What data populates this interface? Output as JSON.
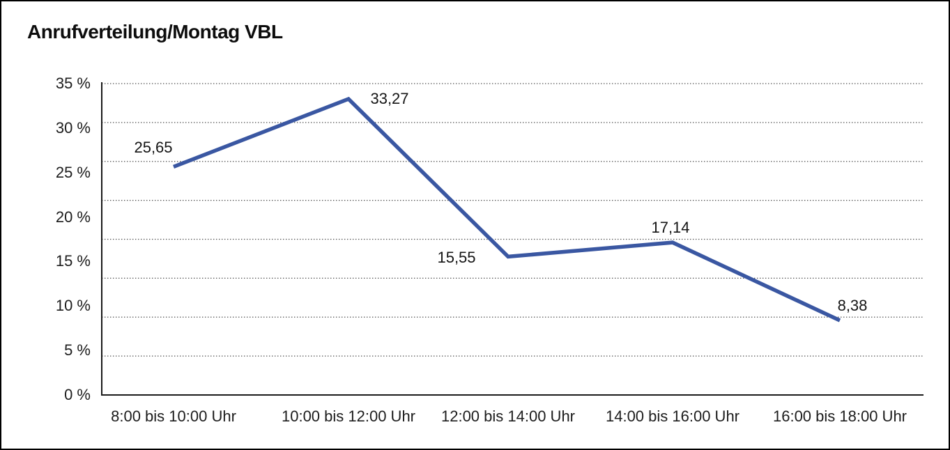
{
  "window": {
    "background_color": "#ffffff",
    "border_color": "#000000"
  },
  "chart_data": {
    "type": "line",
    "title": "Anrufverteilung/Montag VBL",
    "categories": [
      "8:00 bis 10:00 Uhr",
      "10:00 bis 12:00 Uhr",
      "12:00 bis 14:00 Uhr",
      "14:00 bis 16:00 Uhr",
      "16:00 bis 18:00 Uhr"
    ],
    "values": [
      25.65,
      33.27,
      15.55,
      17.14,
      8.38
    ],
    "value_labels": [
      "25,65",
      "33,27",
      "15,55",
      "17,14",
      "8,38"
    ],
    "y_tick_labels": [
      "35 %",
      "30 %",
      "25 %",
      "20 %",
      "15 %",
      "10 %",
      "5 %",
      "0 %"
    ],
    "ylim": [
      0,
      35
    ],
    "xlabel": "",
    "ylabel": "",
    "legend": "none",
    "grid": "horizontal-dotted",
    "line_color": "#3a57a2",
    "axis_color": "#1a1a1a",
    "gridline_color": "#4a4a4a",
    "text_color": "#1c1c1c"
  }
}
